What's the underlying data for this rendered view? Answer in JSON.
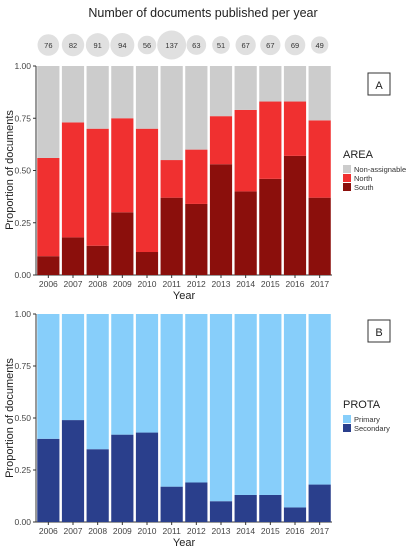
{
  "page_title": "Number of documents published per year",
  "bubbles": {
    "years": [
      "2006",
      "2007",
      "2008",
      "2009",
      "2010",
      "2011",
      "2012",
      "2013",
      "2014",
      "2015",
      "2016",
      "2017"
    ],
    "counts": [
      76,
      82,
      91,
      94,
      56,
      137,
      63,
      51,
      67,
      67,
      69,
      49
    ],
    "color": "#e0e0e0"
  },
  "chart_data": [
    {
      "type": "bar",
      "stacked": true,
      "panel_label": "A",
      "categories": [
        "2006",
        "2007",
        "2008",
        "2009",
        "2010",
        "2011",
        "2012",
        "2013",
        "2014",
        "2015",
        "2016",
        "2017"
      ],
      "series": [
        {
          "name": "South",
          "values": [
            0.09,
            0.18,
            0.14,
            0.3,
            0.11,
            0.37,
            0.34,
            0.53,
            0.4,
            0.46,
            0.57,
            0.37
          ],
          "color": "#8b0f0c"
        },
        {
          "name": "North",
          "values": [
            0.47,
            0.55,
            0.56,
            0.45,
            0.59,
            0.18,
            0.26,
            0.23,
            0.39,
            0.37,
            0.26,
            0.37
          ],
          "color": "#f03030"
        },
        {
          "name": "Non-assignable",
          "values": [
            0.44,
            0.27,
            0.3,
            0.25,
            0.3,
            0.45,
            0.4,
            0.24,
            0.21,
            0.17,
            0.17,
            0.26
          ],
          "color": "#cccccc"
        }
      ],
      "legend_title": "AREA",
      "legend_order": [
        "Non-assignable",
        "North",
        "South"
      ],
      "xlabel": "Year",
      "ylabel": "Proportion of documents",
      "ylim": [
        0,
        1
      ],
      "yticks": [
        "0.00",
        "0.25",
        "0.50",
        "0.75",
        "1.00"
      ],
      "legend": "right",
      "grid": false
    },
    {
      "type": "bar",
      "stacked": true,
      "panel_label": "B",
      "categories": [
        "2006",
        "2007",
        "2008",
        "2009",
        "2010",
        "2011",
        "2012",
        "2013",
        "2014",
        "2015",
        "2016",
        "2017"
      ],
      "series": [
        {
          "name": "Secondary",
          "values": [
            0.4,
            0.49,
            0.35,
            0.42,
            0.43,
            0.17,
            0.19,
            0.1,
            0.13,
            0.13,
            0.07,
            0.18
          ],
          "color": "#2a3f8c"
        },
        {
          "name": "Primary",
          "values": [
            0.6,
            0.51,
            0.65,
            0.58,
            0.57,
            0.83,
            0.81,
            0.9,
            0.87,
            0.87,
            0.93,
            0.82
          ],
          "color": "#87cefa"
        }
      ],
      "legend_title": "PROTA",
      "legend_order": [
        "Primary",
        "Secondary"
      ],
      "xlabel": "Year",
      "ylabel": "Proportion of documents",
      "ylim": [
        0,
        1
      ],
      "yticks": [
        "0.00",
        "0.25",
        "0.50",
        "0.75",
        "1.00"
      ],
      "legend": "right",
      "grid": false
    }
  ]
}
